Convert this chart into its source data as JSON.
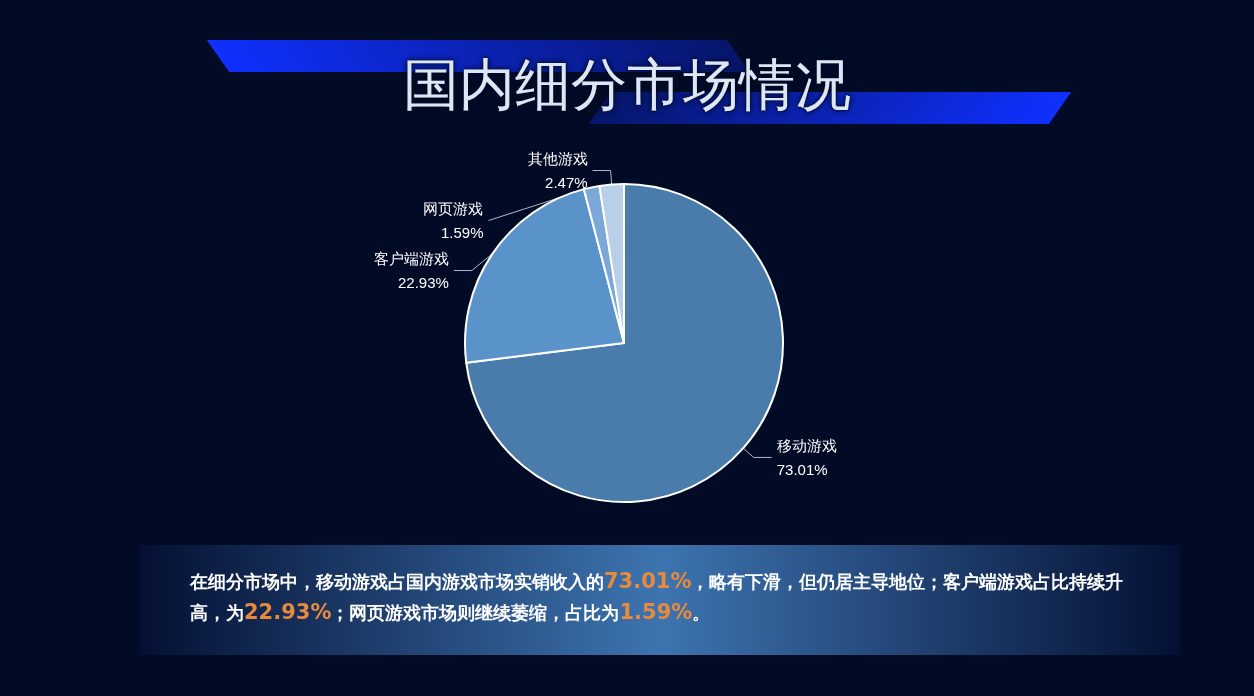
{
  "chart_data": {
    "type": "pie",
    "title": "国内细分市场情况",
    "categories": [
      "移动游戏",
      "客户端游戏",
      "网页游戏",
      "其他游戏"
    ],
    "values": [
      73.01,
      22.93,
      1.59,
      2.47
    ],
    "value_labels": [
      "73.01%",
      "22.93%",
      "1.59%",
      "2.47%"
    ],
    "colors": [
      "#4a7cab",
      "#5a93c9",
      "#7ca8d8",
      "#b9cfe8"
    ],
    "legend": false,
    "annotations": [
      "在细分市场中，移动游戏占国内游戏市场实销收入的73.01%，略有下滑，但仍居主导地位；客户端游戏占比持续升高，为22.93%；网页游戏市场则继续萎缩，占比为1.59%。"
    ]
  }
}
